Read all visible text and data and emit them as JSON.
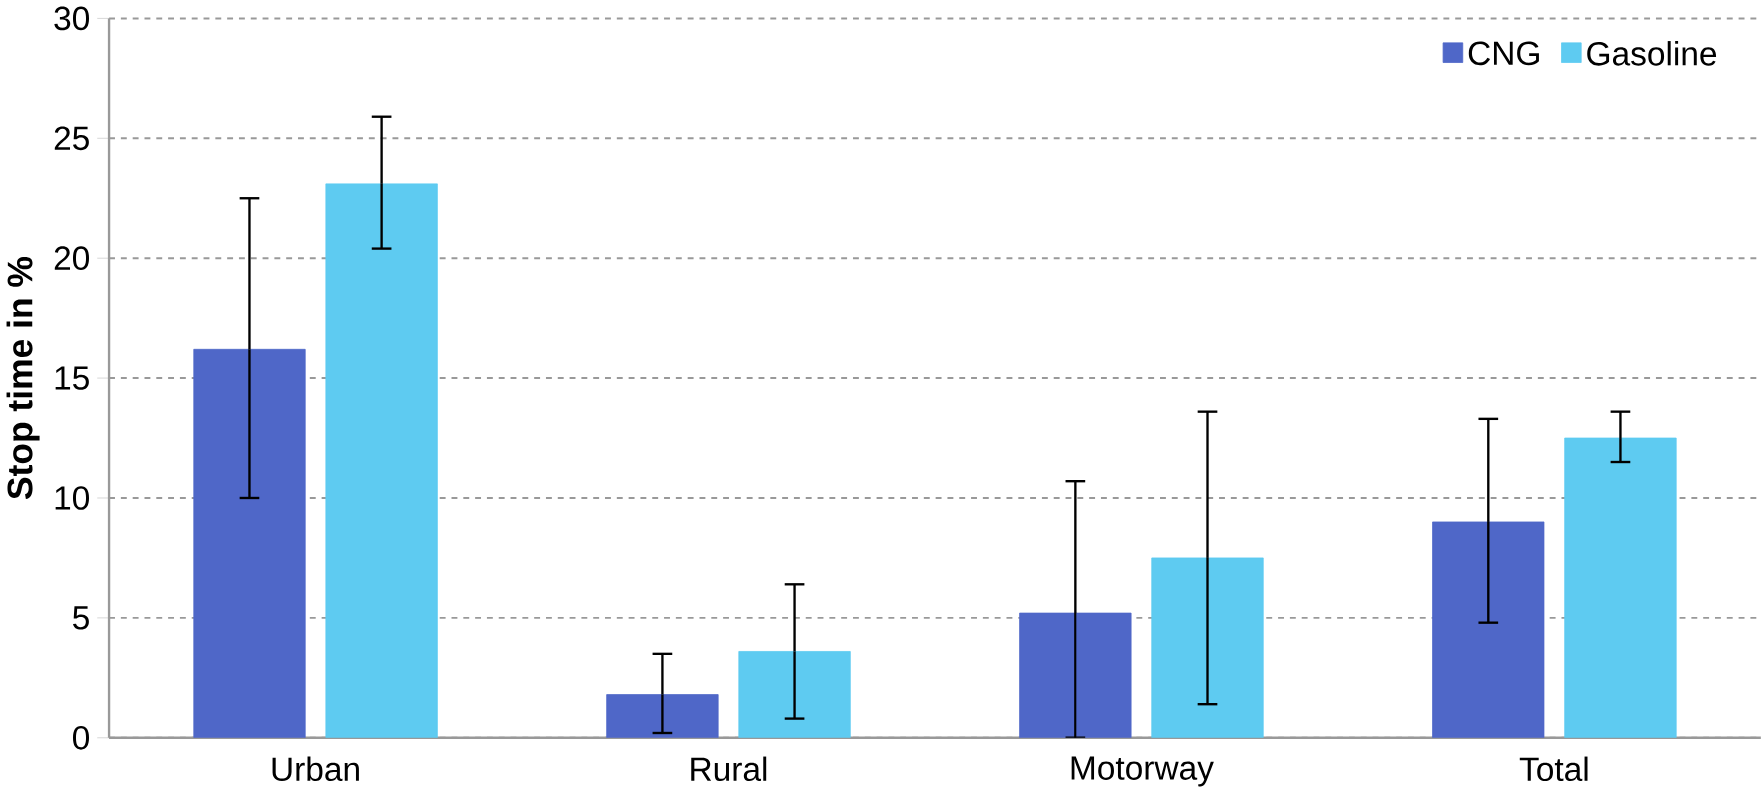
{
  "chart_data": {
    "type": "bar",
    "ylabel": "Stop time in %",
    "categories": [
      "Urban",
      "Rural",
      "Motorway",
      "Total"
    ],
    "series": [
      {
        "name": "CNG",
        "color": "#4f67c8",
        "values": [
          16.2,
          1.8,
          5.2,
          9.0
        ],
        "errors": [
          [
            10.0,
            22.5
          ],
          [
            0.2,
            3.5
          ],
          [
            0.0,
            10.7
          ],
          [
            4.8,
            13.3
          ]
        ]
      },
      {
        "name": "Gasoline",
        "color": "#5ecbf1",
        "values": [
          23.1,
          3.6,
          7.5,
          12.5
        ],
        "errors": [
          [
            20.4,
            25.9
          ],
          [
            0.8,
            6.4
          ],
          [
            1.4,
            13.6
          ],
          [
            11.5,
            13.6
          ]
        ]
      }
    ],
    "ylim": [
      0,
      30
    ],
    "yticks": [
      0,
      5,
      10,
      15,
      20,
      25,
      30
    ],
    "grid": "y",
    "legend": "top right"
  }
}
